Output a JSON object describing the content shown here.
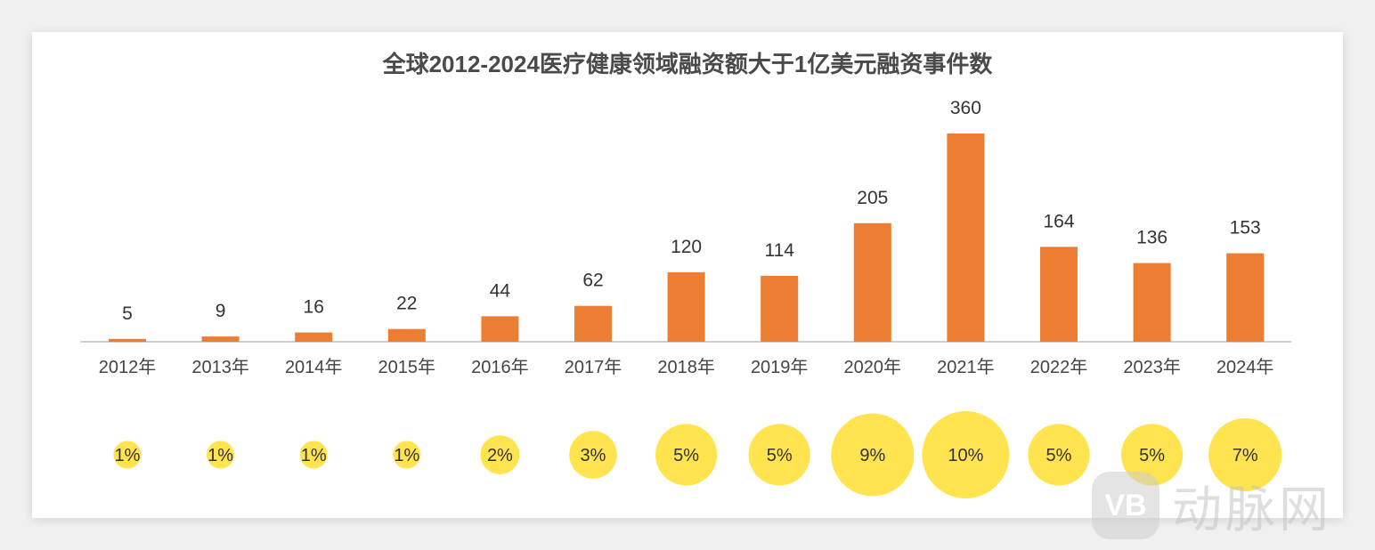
{
  "chart_data": {
    "type": "bar",
    "title": "全球2012-2024医疗健康领域融资额大于1亿美元融资事件数",
    "categories": [
      "2012年",
      "2013年",
      "2014年",
      "2015年",
      "2016年",
      "2017年",
      "2018年",
      "2019年",
      "2020年",
      "2021年",
      "2022年",
      "2023年",
      "2024年"
    ],
    "values": [
      5,
      9,
      16,
      22,
      44,
      62,
      120,
      114,
      205,
      360,
      164,
      136,
      153
    ],
    "value_labels": [
      "5",
      "9",
      "16",
      "22",
      "44",
      "62",
      "120",
      "114",
      "205",
      "360",
      "164",
      "136",
      "153"
    ],
    "percent_values": [
      1,
      1,
      1,
      1,
      2,
      3,
      5,
      5,
      9,
      10,
      5,
      5,
      7
    ],
    "percent_labels": [
      "1%",
      "1%",
      "1%",
      "1%",
      "2%",
      "3%",
      "5%",
      "5%",
      "9%",
      "10%",
      "5%",
      "5%",
      "7%"
    ],
    "ylim": [
      0,
      360
    ],
    "grid": false,
    "colors": {
      "bar": "#ED7D31",
      "bubble": "#FFE34F",
      "axis": "#BFBFBF"
    }
  },
  "watermark": {
    "logo": "VB",
    "text": "动脉网"
  }
}
